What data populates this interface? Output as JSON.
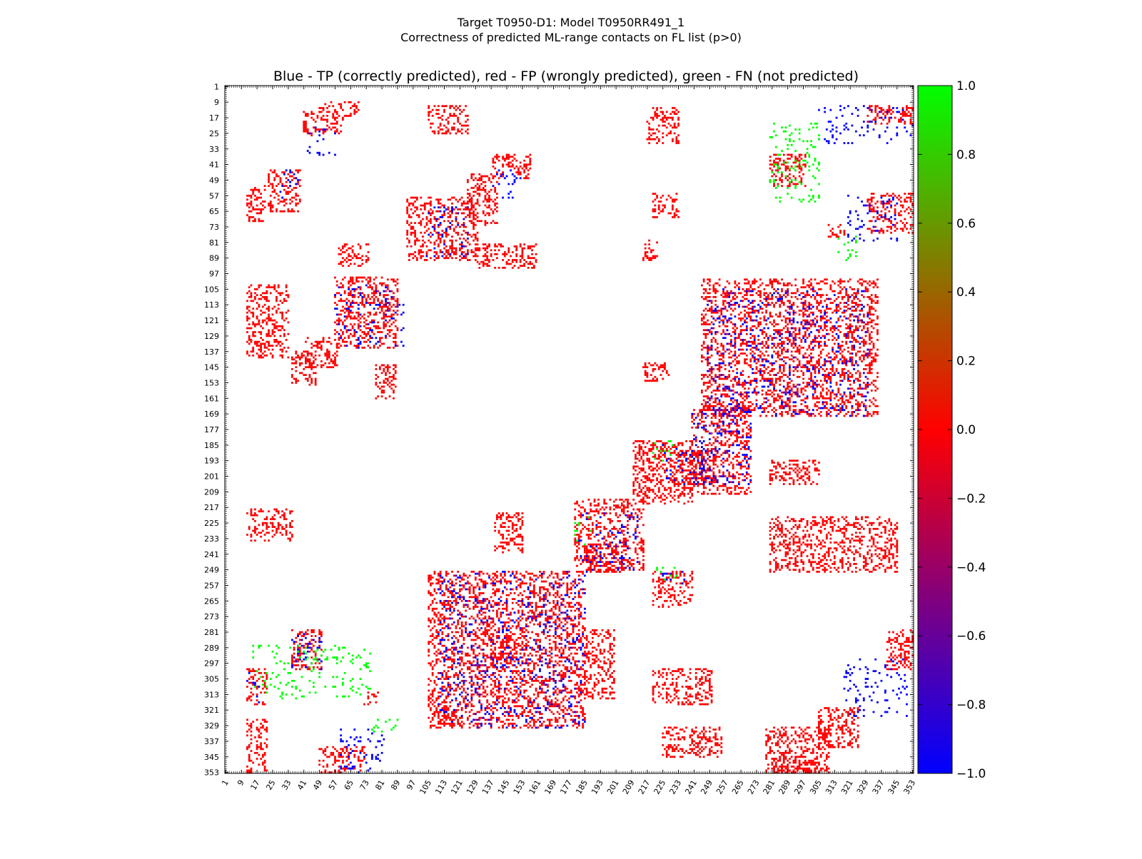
{
  "figure": {
    "suptitle_line1": "Target T0950-D1: Model T0950RR491_1",
    "suptitle_line2": "Correctness of predicted ML-range contacts on FL list (p>0)",
    "axes_title": "Blue - TP (correctly predicted), red - FP (wrongly predicted), green - FN (not predicted)"
  },
  "chart_data": {
    "type": "heatmap",
    "title": "Blue - TP (correctly predicted), red - FP (wrongly predicted), green - FN (not predicted)",
    "xlabel": "",
    "ylabel": "",
    "xlim": [
      1,
      353
    ],
    "ylim": [
      353,
      1
    ],
    "tick_labels": [
      "1",
      "9",
      "17",
      "25",
      "33",
      "41",
      "49",
      "57",
      "65",
      "73",
      "81",
      "89",
      "97",
      "105",
      "113",
      "121",
      "129",
      "137",
      "145",
      "153",
      "161",
      "169",
      "177",
      "185",
      "193",
      "201",
      "209",
      "217",
      "225",
      "233",
      "241",
      "249",
      "257",
      "265",
      "273",
      "281",
      "289",
      "297",
      "305",
      "313",
      "321",
      "329",
      "337",
      "345",
      "353"
    ],
    "tick_values": [
      1,
      9,
      17,
      25,
      33,
      41,
      49,
      57,
      65,
      73,
      81,
      89,
      97,
      105,
      113,
      121,
      129,
      137,
      145,
      153,
      161,
      169,
      177,
      185,
      193,
      201,
      209,
      217,
      225,
      233,
      241,
      249,
      257,
      265,
      273,
      281,
      289,
      297,
      305,
      313,
      321,
      329,
      337,
      345,
      353
    ],
    "colorbar": {
      "min": -1.0,
      "max": 1.0,
      "ticks": [
        "1.0",
        "0.8",
        "0.6",
        "0.4",
        "0.2",
        "0.0",
        "−0.2",
        "−0.4",
        "−0.6",
        "−0.8",
        "−1.0"
      ],
      "tick_values": [
        1.0,
        0.8,
        0.6,
        0.4,
        0.2,
        0.0,
        -0.2,
        -0.4,
        -0.6,
        -0.8,
        -1.0
      ],
      "colors": {
        "low": "#0000ff",
        "mid": "#ff0000",
        "high": "#00ff00"
      }
    },
    "legend": {
      "tp": {
        "value": -1.0,
        "color": "#0000ff"
      },
      "fp": {
        "value": 0.0,
        "color": "#ff0000"
      },
      "fn": {
        "value": 1.0,
        "color": "#00ff00"
      }
    },
    "regions": [
      {
        "class": "fp",
        "rows": [
          9,
          16
        ],
        "cols": [
          49,
          69
        ]
      },
      {
        "class": "fp",
        "rows": [
          14,
          26
        ],
        "cols": [
          41,
          61
        ]
      },
      {
        "class": "tp",
        "rows": [
          22,
          36
        ],
        "cols": [
          43,
          57
        ]
      },
      {
        "class": "fp",
        "rows": [
          11,
          25
        ],
        "cols": [
          105,
          125
        ]
      },
      {
        "class": "fp",
        "rows": [
          36,
          48
        ],
        "cols": [
          138,
          157
        ]
      },
      {
        "class": "tp",
        "rows": [
          44,
          58
        ],
        "cols": [
          138,
          152
        ]
      },
      {
        "class": "fp",
        "rows": [
          46,
          72
        ],
        "cols": [
          125,
          140
        ]
      },
      {
        "class": "fp",
        "rows": [
          52,
          70
        ],
        "cols": [
          12,
          21
        ]
      },
      {
        "class": "fp",
        "rows": [
          44,
          65
        ],
        "cols": [
          23,
          39
        ]
      },
      {
        "class": "tp",
        "rows": [
          44,
          58
        ],
        "cols": [
          28,
          40
        ]
      },
      {
        "class": "fp",
        "rows": [
          58,
          90
        ],
        "cols": [
          94,
          130
        ]
      },
      {
        "class": "tp",
        "rows": [
          62,
          88
        ],
        "cols": [
          104,
          125
        ]
      },
      {
        "class": "fp",
        "rows": [
          82,
          93
        ],
        "cols": [
          59,
          74
        ]
      },
      {
        "class": "fp",
        "rows": [
          99,
          135
        ],
        "cols": [
          57,
          89
        ]
      },
      {
        "class": "tp",
        "rows": [
          103,
          135
        ],
        "cols": [
          57,
          92
        ]
      },
      {
        "class": "fp",
        "rows": [
          103,
          140
        ],
        "cols": [
          12,
          33
        ]
      },
      {
        "class": "fp",
        "rows": [
          137,
          154
        ],
        "cols": [
          35,
          47
        ]
      },
      {
        "class": "fp",
        "rows": [
          130,
          145
        ],
        "cols": [
          42,
          58
        ]
      },
      {
        "class": "fp",
        "rows": [
          144,
          161
        ],
        "cols": [
          78,
          88
        ]
      },
      {
        "class": "fp",
        "rows": [
          12,
          30
        ],
        "cols": [
          217,
          233
        ]
      },
      {
        "class": "fp",
        "rows": [
          11,
          20
        ],
        "cols": [
          330,
          353
        ]
      },
      {
        "class": "tp",
        "rows": [
          11,
          30
        ],
        "cols": [
          305,
          353
        ]
      },
      {
        "class": "fn",
        "rows": [
          20,
          60
        ],
        "cols": [
          280,
          305
        ]
      },
      {
        "class": "fp",
        "rows": [
          36,
          52
        ],
        "cols": [
          280,
          298
        ]
      },
      {
        "class": "fp",
        "rows": [
          56,
          76
        ],
        "cols": [
          330,
          353
        ]
      },
      {
        "class": "tp",
        "rows": [
          56,
          80
        ],
        "cols": [
          320,
          345
        ]
      },
      {
        "class": "fp",
        "rows": [
          72,
          78
        ],
        "cols": [
          310,
          318
        ]
      },
      {
        "class": "fn",
        "rows": [
          76,
          90
        ],
        "cols": [
          315,
          324
        ]
      },
      {
        "class": "fp",
        "rows": [
          100,
          170
        ],
        "cols": [
          245,
          335
        ]
      },
      {
        "class": "tp",
        "rows": [
          105,
          170
        ],
        "cols": [
          248,
          330
        ]
      },
      {
        "class": "fp",
        "rows": [
          143,
          152
        ],
        "cols": [
          215,
          228
        ]
      },
      {
        "class": "fp",
        "rows": [
          165,
          210
        ],
        "cols": [
          240,
          270
        ]
      },
      {
        "class": "tp",
        "rows": [
          165,
          205
        ],
        "cols": [
          240,
          270
        ]
      },
      {
        "class": "fp",
        "rows": [
          183,
          215
        ],
        "cols": [
          210,
          240
        ]
      },
      {
        "class": "fp",
        "rows": [
          188,
          205
        ],
        "cols": [
          230,
          252
        ]
      },
      {
        "class": "tp",
        "rows": [
          185,
          205
        ],
        "cols": [
          225,
          250
        ]
      },
      {
        "class": "fn",
        "rows": [
          183,
          193
        ],
        "cols": [
          220,
          232
        ]
      },
      {
        "class": "fp",
        "rows": [
          193,
          205
        ],
        "cols": [
          280,
          305
        ]
      },
      {
        "class": "fp",
        "rows": [
          213,
          250
        ],
        "cols": [
          180,
          215
        ]
      },
      {
        "class": "fp",
        "rows": [
          236,
          250
        ],
        "cols": [
          185,
          205
        ]
      },
      {
        "class": "tp",
        "rows": [
          220,
          250
        ],
        "cols": [
          182,
          212
        ]
      },
      {
        "class": "fn",
        "rows": [
          222,
          236
        ],
        "cols": [
          180,
          190
        ]
      },
      {
        "class": "fp",
        "rows": [
          250,
          330
        ],
        "cols": [
          105,
          185
        ]
      },
      {
        "class": "tp",
        "rows": [
          250,
          330
        ],
        "cols": [
          110,
          185
        ]
      },
      {
        "class": "fp",
        "rows": [
          283,
          299
        ],
        "cols": [
          137,
          150
        ]
      },
      {
        "class": "fp",
        "rows": [
          320,
          328
        ],
        "cols": [
          110,
          122
        ]
      },
      {
        "class": "fp",
        "rows": [
          280,
          300
        ],
        "cols": [
          340,
          353
        ]
      },
      {
        "class": "tp",
        "rows": [
          295,
          325
        ],
        "cols": [
          318,
          350
        ]
      },
      {
        "class": "fp",
        "rows": [
          320,
          340
        ],
        "cols": [
          305,
          325
        ]
      },
      {
        "class": "fp",
        "rows": [
          330,
          353
        ],
        "cols": [
          278,
          310
        ]
      },
      {
        "class": "fp",
        "rows": [
          345,
          353
        ],
        "cols": [
          282,
          305
        ]
      },
      {
        "class": "fp",
        "rows": [
          280,
          300
        ],
        "cols": [
          35,
          50
        ]
      },
      {
        "class": "tp",
        "rows": [
          280,
          300
        ],
        "cols": [
          35,
          50
        ]
      },
      {
        "class": "fn",
        "rows": [
          288,
          315
        ],
        "cols": [
          15,
          75
        ]
      },
      {
        "class": "tp",
        "rows": [
          300,
          318
        ],
        "cols": [
          12,
          18
        ]
      },
      {
        "class": "fp",
        "rows": [
          300,
          318
        ],
        "cols": [
          12,
          22
        ]
      },
      {
        "class": "fp",
        "rows": [
          312,
          318
        ],
        "cols": [
          72,
          80
        ]
      },
      {
        "class": "fp",
        "rows": [
          325,
          353
        ],
        "cols": [
          12,
          22
        ]
      },
      {
        "class": "fp",
        "rows": [
          340,
          353
        ],
        "cols": [
          49,
          72
        ]
      },
      {
        "class": "tp",
        "rows": [
          330,
          353
        ],
        "cols": [
          60,
          82
        ]
      },
      {
        "class": "fn",
        "rows": [
          326,
          332
        ],
        "cols": [
          76,
          89
        ]
      },
      {
        "class": "fp",
        "rows": [
          330,
          345
        ],
        "cols": [
          225,
          255
        ]
      },
      {
        "class": "fp",
        "rows": [
          280,
          315
        ],
        "cols": [
          186,
          200
        ]
      },
      {
        "class": "fp",
        "rows": [
          300,
          318
        ],
        "cols": [
          220,
          250
        ]
      },
      {
        "class": "fp",
        "rows": [
          222,
          250
        ],
        "cols": [
          280,
          345
        ]
      },
      {
        "class": "fp",
        "rows": [
          218,
          234
        ],
        "cols": [
          12,
          35
        ]
      },
      {
        "class": "fp",
        "rows": [
          220,
          240
        ],
        "cols": [
          139,
          153
        ]
      },
      {
        "class": "fp",
        "rows": [
          250,
          268
        ],
        "cols": [
          220,
          240
        ]
      },
      {
        "class": "tp",
        "rows": [
          250,
          258
        ],
        "cols": [
          225,
          236
        ]
      },
      {
        "class": "fn",
        "rows": [
          248,
          254
        ],
        "cols": [
          222,
          232
        ]
      },
      {
        "class": "fp",
        "rows": [
          82,
          94
        ],
        "cols": [
          130,
          160
        ]
      },
      {
        "class": "fp",
        "rows": [
          80,
          90
        ],
        "cols": [
          215,
          222
        ]
      },
      {
        "class": "fp",
        "rows": [
          56,
          68
        ],
        "cols": [
          220,
          233
        ]
      }
    ]
  }
}
